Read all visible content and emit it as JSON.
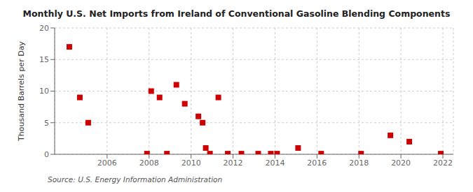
{
  "chart_data": {
    "type": "scatter",
    "title": "Monthly U.S. Net Imports from Ireland of Conventional Gasoline Blending Components",
    "ylabel": "Thousand Barrels per Day",
    "annotation": "Source: U.S. Energy Information Administration",
    "x": [
      2004.2,
      2004.7,
      2005.1,
      2007.9,
      2008.1,
      2008.5,
      2008.85,
      2009.3,
      2009.7,
      2010.35,
      2010.55,
      2010.7,
      2010.9,
      2011.3,
      2011.75,
      2012.4,
      2013.2,
      2013.8,
      2014.1,
      2015.1,
      2016.2,
      2018.1,
      2019.5,
      2020.4,
      2021.9
    ],
    "values": [
      17.0,
      9.0,
      5.0,
      0.1,
      10.0,
      9.0,
      0.1,
      11.0,
      8.0,
      6.0,
      5.0,
      1.0,
      0.1,
      9.0,
      0.1,
      0.1,
      0.1,
      0.1,
      0.1,
      1.0,
      0.1,
      0.1,
      3.0,
      2.0,
      0.1
    ],
    "color": "#cc0000",
    "marker": "square",
    "xlim": [
      2003.5,
      2022.5
    ],
    "ylim": [
      0,
      20
    ],
    "xticks": [
      2006,
      2008,
      2010,
      2012,
      2014,
      2016,
      2018,
      2020,
      2022
    ],
    "yticks": [
      0,
      5,
      10,
      15,
      20
    ],
    "grid": true
  }
}
